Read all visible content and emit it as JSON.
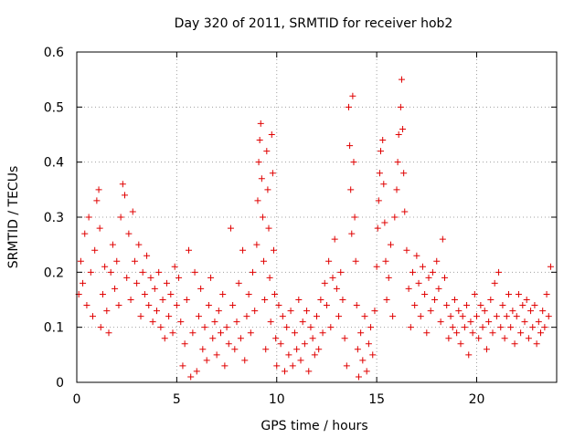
{
  "chart_data": {
    "type": "scatter",
    "title": "Day 320 of 2011, SRMTID for receiver hob2",
    "xlabel": "GPS time / hours",
    "ylabel": "SRMTID / TECUs",
    "xlim": [
      0,
      24
    ],
    "ylim": [
      0,
      0.6
    ],
    "x_ticks": [
      0,
      5,
      10,
      15,
      20
    ],
    "y_ticks": [
      0,
      0.1,
      0.2,
      0.3,
      0.4,
      0.5,
      0.6
    ],
    "x_tick_labels": [
      "0",
      "5",
      "10",
      "15",
      "20"
    ],
    "y_tick_labels": [
      "0",
      "0.1",
      "0.2",
      "0.3",
      "0.4",
      "0.5",
      "0.6"
    ],
    "grid": true,
    "marker": "plus",
    "series": [
      {
        "name": "SRMTID",
        "color": "#e00000",
        "points": [
          [
            0.1,
            0.16
          ],
          [
            0.2,
            0.22
          ],
          [
            0.3,
            0.18
          ],
          [
            0.4,
            0.27
          ],
          [
            0.5,
            0.14
          ],
          [
            0.6,
            0.3
          ],
          [
            0.7,
            0.2
          ],
          [
            0.8,
            0.12
          ],
          [
            0.9,
            0.24
          ],
          [
            1.0,
            0.33
          ],
          [
            1.1,
            0.35
          ],
          [
            1.15,
            0.28
          ],
          [
            1.2,
            0.1
          ],
          [
            1.3,
            0.16
          ],
          [
            1.4,
            0.21
          ],
          [
            1.5,
            0.13
          ],
          [
            1.6,
            0.09
          ],
          [
            1.7,
            0.2
          ],
          [
            1.8,
            0.25
          ],
          [
            1.9,
            0.17
          ],
          [
            2.0,
            0.22
          ],
          [
            2.1,
            0.14
          ],
          [
            2.2,
            0.3
          ],
          [
            2.3,
            0.36
          ],
          [
            2.4,
            0.34
          ],
          [
            2.5,
            0.19
          ],
          [
            2.6,
            0.27
          ],
          [
            2.7,
            0.15
          ],
          [
            2.8,
            0.31
          ],
          [
            2.9,
            0.22
          ],
          [
            3.0,
            0.18
          ],
          [
            3.1,
            0.25
          ],
          [
            3.2,
            0.12
          ],
          [
            3.3,
            0.2
          ],
          [
            3.4,
            0.16
          ],
          [
            3.5,
            0.23
          ],
          [
            3.6,
            0.14
          ],
          [
            3.7,
            0.19
          ],
          [
            3.8,
            0.11
          ],
          [
            3.9,
            0.17
          ],
          [
            4.0,
            0.13
          ],
          [
            4.1,
            0.2
          ],
          [
            4.2,
            0.1
          ],
          [
            4.3,
            0.15
          ],
          [
            4.4,
            0.08
          ],
          [
            4.5,
            0.18
          ],
          [
            4.6,
            0.12
          ],
          [
            4.7,
            0.16
          ],
          [
            4.8,
            0.09
          ],
          [
            4.9,
            0.21
          ],
          [
            5.0,
            0.14
          ],
          [
            5.1,
            0.19
          ],
          [
            5.2,
            0.11
          ],
          [
            5.3,
            0.03
          ],
          [
            5.4,
            0.07
          ],
          [
            5.5,
            0.15
          ],
          [
            5.6,
            0.24
          ],
          [
            5.7,
            0.01
          ],
          [
            5.8,
            0.09
          ],
          [
            5.9,
            0.2
          ],
          [
            6.0,
            0.02
          ],
          [
            6.1,
            0.12
          ],
          [
            6.2,
            0.17
          ],
          [
            6.3,
            0.06
          ],
          [
            6.4,
            0.1
          ],
          [
            6.5,
            0.04
          ],
          [
            6.6,
            0.14
          ],
          [
            6.7,
            0.19
          ],
          [
            6.8,
            0.08
          ],
          [
            6.9,
            0.11
          ],
          [
            7.0,
            0.05
          ],
          [
            7.1,
            0.13
          ],
          [
            7.2,
            0.09
          ],
          [
            7.3,
            0.16
          ],
          [
            7.4,
            0.03
          ],
          [
            7.5,
            0.1
          ],
          [
            7.6,
            0.07
          ],
          [
            7.7,
            0.28
          ],
          [
            7.8,
            0.14
          ],
          [
            7.9,
            0.06
          ],
          [
            8.0,
            0.11
          ],
          [
            8.1,
            0.18
          ],
          [
            8.2,
            0.08
          ],
          [
            8.3,
            0.24
          ],
          [
            8.4,
            0.04
          ],
          [
            8.5,
            0.12
          ],
          [
            8.6,
            0.16
          ],
          [
            8.7,
            0.09
          ],
          [
            8.8,
            0.2
          ],
          [
            8.9,
            0.13
          ],
          [
            9.0,
            0.25
          ],
          [
            9.05,
            0.33
          ],
          [
            9.1,
            0.4
          ],
          [
            9.15,
            0.44
          ],
          [
            9.2,
            0.47
          ],
          [
            9.25,
            0.37
          ],
          [
            9.3,
            0.3
          ],
          [
            9.35,
            0.22
          ],
          [
            9.4,
            0.15
          ],
          [
            9.45,
            0.06
          ],
          [
            9.5,
            0.42
          ],
          [
            9.55,
            0.35
          ],
          [
            9.6,
            0.28
          ],
          [
            9.65,
            0.19
          ],
          [
            9.7,
            0.11
          ],
          [
            9.75,
            0.45
          ],
          [
            9.8,
            0.38
          ],
          [
            9.85,
            0.24
          ],
          [
            9.9,
            0.16
          ],
          [
            9.95,
            0.08
          ],
          [
            10.0,
            0.03
          ],
          [
            10.1,
            0.14
          ],
          [
            10.2,
            0.07
          ],
          [
            10.3,
            0.12
          ],
          [
            10.4,
            0.02
          ],
          [
            10.5,
            0.1
          ],
          [
            10.6,
            0.05
          ],
          [
            10.7,
            0.13
          ],
          [
            10.8,
            0.03
          ],
          [
            10.9,
            0.09
          ],
          [
            11.0,
            0.06
          ],
          [
            11.1,
            0.15
          ],
          [
            11.2,
            0.04
          ],
          [
            11.3,
            0.11
          ],
          [
            11.4,
            0.07
          ],
          [
            11.5,
            0.13
          ],
          [
            11.6,
            0.02
          ],
          [
            11.7,
            0.1
          ],
          [
            11.8,
            0.08
          ],
          [
            11.9,
            0.05
          ],
          [
            12.0,
            0.12
          ],
          [
            12.1,
            0.06
          ],
          [
            12.2,
            0.15
          ],
          [
            12.3,
            0.09
          ],
          [
            12.4,
            0.18
          ],
          [
            12.5,
            0.14
          ],
          [
            12.6,
            0.22
          ],
          [
            12.7,
            0.1
          ],
          [
            12.8,
            0.19
          ],
          [
            12.9,
            0.26
          ],
          [
            13.0,
            0.17
          ],
          [
            13.1,
            0.12
          ],
          [
            13.2,
            0.2
          ],
          [
            13.3,
            0.15
          ],
          [
            13.4,
            0.08
          ],
          [
            13.5,
            0.03
          ],
          [
            13.6,
            0.5
          ],
          [
            13.65,
            0.43
          ],
          [
            13.7,
            0.35
          ],
          [
            13.75,
            0.27
          ],
          [
            13.8,
            0.52
          ],
          [
            13.85,
            0.4
          ],
          [
            13.9,
            0.3
          ],
          [
            13.95,
            0.22
          ],
          [
            14.0,
            0.14
          ],
          [
            14.05,
            0.06
          ],
          [
            14.1,
            0.01
          ],
          [
            14.2,
            0.09
          ],
          [
            14.3,
            0.04
          ],
          [
            14.4,
            0.12
          ],
          [
            14.5,
            0.02
          ],
          [
            14.6,
            0.07
          ],
          [
            14.7,
            0.1
          ],
          [
            14.8,
            0.05
          ],
          [
            14.9,
            0.13
          ],
          [
            15.0,
            0.21
          ],
          [
            15.05,
            0.28
          ],
          [
            15.1,
            0.33
          ],
          [
            15.15,
            0.38
          ],
          [
            15.2,
            0.42
          ],
          [
            15.3,
            0.44
          ],
          [
            15.35,
            0.36
          ],
          [
            15.4,
            0.29
          ],
          [
            15.45,
            0.22
          ],
          [
            15.5,
            0.15
          ],
          [
            15.6,
            0.19
          ],
          [
            15.7,
            0.25
          ],
          [
            15.8,
            0.12
          ],
          [
            15.9,
            0.3
          ],
          [
            16.0,
            0.35
          ],
          [
            16.05,
            0.4
          ],
          [
            16.1,
            0.45
          ],
          [
            16.2,
            0.5
          ],
          [
            16.25,
            0.55
          ],
          [
            16.3,
            0.46
          ],
          [
            16.35,
            0.38
          ],
          [
            16.4,
            0.31
          ],
          [
            16.5,
            0.24
          ],
          [
            16.6,
            0.17
          ],
          [
            16.7,
            0.1
          ],
          [
            16.8,
            0.2
          ],
          [
            16.9,
            0.14
          ],
          [
            17.0,
            0.23
          ],
          [
            17.1,
            0.18
          ],
          [
            17.2,
            0.12
          ],
          [
            17.3,
            0.21
          ],
          [
            17.4,
            0.16
          ],
          [
            17.5,
            0.09
          ],
          [
            17.6,
            0.19
          ],
          [
            17.7,
            0.13
          ],
          [
            17.8,
            0.2
          ],
          [
            17.9,
            0.15
          ],
          [
            18.0,
            0.22
          ],
          [
            18.1,
            0.17
          ],
          [
            18.2,
            0.11
          ],
          [
            18.3,
            0.26
          ],
          [
            18.4,
            0.19
          ],
          [
            18.5,
            0.14
          ],
          [
            18.6,
            0.08
          ],
          [
            18.7,
            0.12
          ],
          [
            18.8,
            0.1
          ],
          [
            18.9,
            0.15
          ],
          [
            19.0,
            0.09
          ],
          [
            19.1,
            0.13
          ],
          [
            19.2,
            0.07
          ],
          [
            19.3,
            0.12
          ],
          [
            19.4,
            0.1
          ],
          [
            19.5,
            0.14
          ],
          [
            19.6,
            0.05
          ],
          [
            19.7,
            0.11
          ],
          [
            19.8,
            0.09
          ],
          [
            19.9,
            0.16
          ],
          [
            20.0,
            0.12
          ],
          [
            20.1,
            0.08
          ],
          [
            20.2,
            0.14
          ],
          [
            20.3,
            0.1
          ],
          [
            20.4,
            0.13
          ],
          [
            20.5,
            0.06
          ],
          [
            20.6,
            0.11
          ],
          [
            20.7,
            0.15
          ],
          [
            20.8,
            0.09
          ],
          [
            20.9,
            0.18
          ],
          [
            21.0,
            0.12
          ],
          [
            21.1,
            0.2
          ],
          [
            21.2,
            0.1
          ],
          [
            21.3,
            0.14
          ],
          [
            21.4,
            0.08
          ],
          [
            21.5,
            0.12
          ],
          [
            21.6,
            0.16
          ],
          [
            21.7,
            0.1
          ],
          [
            21.8,
            0.13
          ],
          [
            21.9,
            0.07
          ],
          [
            22.0,
            0.12
          ],
          [
            22.1,
            0.16
          ],
          [
            22.2,
            0.09
          ],
          [
            22.3,
            0.14
          ],
          [
            22.4,
            0.11
          ],
          [
            22.5,
            0.15
          ],
          [
            22.6,
            0.08
          ],
          [
            22.7,
            0.13
          ],
          [
            22.8,
            0.1
          ],
          [
            22.9,
            0.14
          ],
          [
            23.0,
            0.07
          ],
          [
            23.1,
            0.11
          ],
          [
            23.2,
            0.09
          ],
          [
            23.3,
            0.13
          ],
          [
            23.4,
            0.1
          ],
          [
            23.5,
            0.16
          ],
          [
            23.6,
            0.12
          ],
          [
            23.7,
            0.21
          ]
        ]
      }
    ]
  }
}
